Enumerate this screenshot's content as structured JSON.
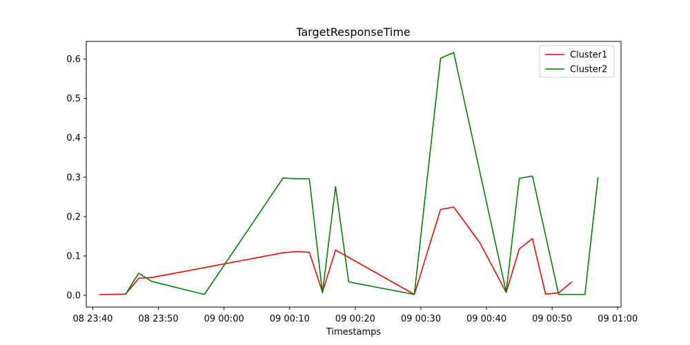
{
  "chart_data": {
    "type": "line",
    "title": "TargetResponseTime",
    "xlabel": "Timestamps",
    "ylabel": "",
    "x_is_time": true,
    "xlim": [
      "2023-01-08 23:39:00",
      "2023-01-09 01:00:30"
    ],
    "ylim": [
      -0.03,
      0.645
    ],
    "x_ticks": [
      {
        "value": "2023-01-08 23:40:00",
        "label": "08 23:40"
      },
      {
        "value": "2023-01-08 23:50:00",
        "label": "08 23:50"
      },
      {
        "value": "2023-01-09 00:00:00",
        "label": "09 00:00"
      },
      {
        "value": "2023-01-09 00:10:00",
        "label": "09 00:10"
      },
      {
        "value": "2023-01-09 00:20:00",
        "label": "09 00:20"
      },
      {
        "value": "2023-01-09 00:30:00",
        "label": "09 00:30"
      },
      {
        "value": "2023-01-09 00:40:00",
        "label": "09 00:40"
      },
      {
        "value": "2023-01-09 00:50:00",
        "label": "09 00:50"
      },
      {
        "value": "2023-01-09 01:00:00",
        "label": "09 01:00"
      }
    ],
    "y_ticks": [
      {
        "value": 0.0,
        "label": "0.0"
      },
      {
        "value": 0.1,
        "label": "0.1"
      },
      {
        "value": 0.2,
        "label": "0.2"
      },
      {
        "value": 0.3,
        "label": "0.3"
      },
      {
        "value": 0.4,
        "label": "0.4"
      },
      {
        "value": 0.5,
        "label": "0.5"
      },
      {
        "value": 0.6,
        "label": "0.6"
      }
    ],
    "grid": false,
    "legend_position": "top-right",
    "series": [
      {
        "name": "Cluster1",
        "color": "#ff0000",
        "points": [
          [
            "2023-01-08 23:41:00",
            0.002
          ],
          [
            "2023-01-08 23:45:00",
            0.003
          ],
          [
            "2023-01-08 23:47:00",
            0.043
          ],
          [
            "2023-01-08 23:49:00",
            0.045
          ],
          [
            "2023-01-09 00:09:00",
            0.108
          ],
          [
            "2023-01-09 00:11:00",
            0.111
          ],
          [
            "2023-01-09 00:13:00",
            0.109
          ],
          [
            "2023-01-09 00:15:00",
            0.008
          ],
          [
            "2023-01-09 00:17:00",
            0.115
          ],
          [
            "2023-01-09 00:29:00",
            0.002
          ],
          [
            "2023-01-09 00:33:00",
            0.218
          ],
          [
            "2023-01-09 00:35:00",
            0.224
          ],
          [
            "2023-01-09 00:39:00",
            0.133
          ],
          [
            "2023-01-09 00:43:00",
            0.007
          ],
          [
            "2023-01-09 00:45:00",
            0.118
          ],
          [
            "2023-01-09 00:47:00",
            0.144
          ],
          [
            "2023-01-09 00:49:00",
            0.003
          ],
          [
            "2023-01-09 00:51:00",
            0.006
          ],
          [
            "2023-01-09 00:53:00",
            0.034
          ]
        ]
      },
      {
        "name": "Cluster2",
        "color": "#008000",
        "points": [
          [
            "2023-01-08 23:45:00",
            0.003
          ],
          [
            "2023-01-08 23:47:00",
            0.056
          ],
          [
            "2023-01-08 23:49:00",
            0.035
          ],
          [
            "2023-01-08 23:57:00",
            0.002
          ],
          [
            "2023-01-09 00:09:00",
            0.298
          ],
          [
            "2023-01-09 00:11:00",
            0.296
          ],
          [
            "2023-01-09 00:13:00",
            0.296
          ],
          [
            "2023-01-09 00:15:00",
            0.006
          ],
          [
            "2023-01-09 00:17:00",
            0.276
          ],
          [
            "2023-01-09 00:19:00",
            0.034
          ],
          [
            "2023-01-09 00:29:00",
            0.002
          ],
          [
            "2023-01-09 00:33:00",
            0.602
          ],
          [
            "2023-01-09 00:35:00",
            0.617
          ],
          [
            "2023-01-09 00:43:00",
            0.008
          ],
          [
            "2023-01-09 00:45:00",
            0.297
          ],
          [
            "2023-01-09 00:47:00",
            0.303
          ],
          [
            "2023-01-09 00:51:00",
            0.002
          ],
          [
            "2023-01-09 00:55:00",
            0.002
          ],
          [
            "2023-01-09 00:57:00",
            0.3
          ]
        ]
      }
    ]
  }
}
